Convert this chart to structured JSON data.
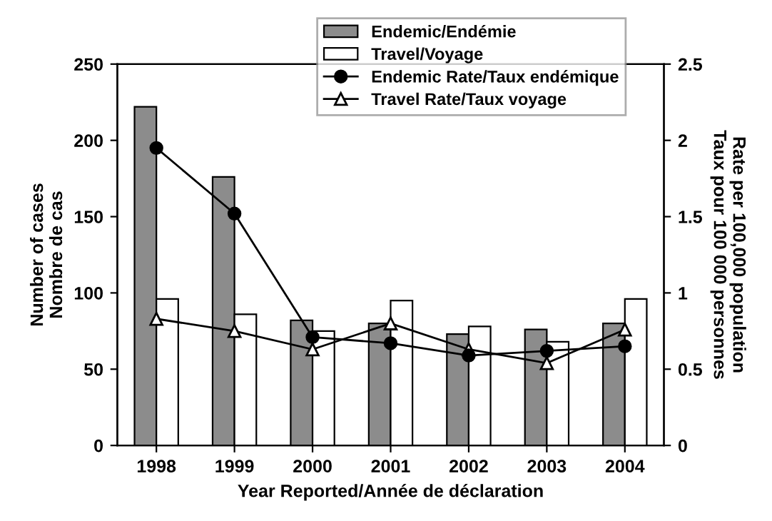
{
  "chart_data": {
    "type": "bar",
    "xlabel": "Year Reported/Année de déclaration",
    "ylabel": "Number of cases\nNombre de cas",
    "y2label": "Rate per 100,000 population\nTaux pour 100 000 personnes",
    "categories": [
      "1998",
      "1999",
      "2000",
      "2001",
      "2002",
      "2003",
      "2004"
    ],
    "series": [
      {
        "name": "Endemic/Endémie",
        "color": "#8c8c8c",
        "values": [
          222,
          176,
          82,
          80,
          73,
          76,
          80
        ]
      },
      {
        "name": "Travel/Voyage",
        "color": "#ffffff",
        "values": [
          96,
          86,
          75,
          95,
          78,
          68,
          96
        ]
      },
      {
        "name": "Endemic Rate/Taux endémique",
        "type": "line",
        "axis": "y2",
        "color": "#000000",
        "marker": "circle",
        "values": [
          1.95,
          1.52,
          0.71,
          0.67,
          0.59,
          0.62,
          0.65
        ]
      },
      {
        "name": "Travel Rate/Taux voyage",
        "type": "line",
        "axis": "y2",
        "color": "#000000",
        "marker": "triangle",
        "values": [
          0.83,
          0.75,
          0.63,
          0.8,
          0.63,
          0.54,
          0.76
        ]
      }
    ],
    "ylim": [
      0,
      250
    ],
    "yticks": [
      0,
      50,
      100,
      150,
      200,
      250
    ],
    "y2lim": [
      0,
      2.5
    ],
    "y2ticks": [
      0,
      0.5,
      1,
      1.5,
      2,
      2.5
    ],
    "grid": false,
    "legend": "top right"
  }
}
